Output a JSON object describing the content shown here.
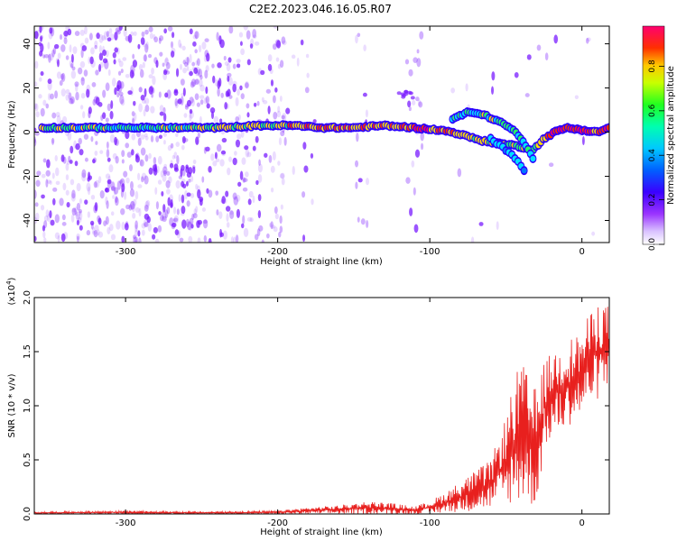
{
  "title": "C2E2.2023.046.16.05.R07",
  "colors": {
    "snr_line": "#e8201e",
    "ridge_palette": [
      "#3b00ff",
      "#0077ff",
      "#00e0ff",
      "#22ff66",
      "#ffe000",
      "#ff3000",
      "#ff0066"
    ],
    "scatter": "#7a1cff"
  },
  "chart_data": [
    {
      "type": "heatmap",
      "xlabel": "Height of straight line (km)",
      "ylabel": "Frequency (Hz)",
      "xlim": [
        -360,
        18
      ],
      "ylim": [
        -50,
        48
      ],
      "xticks": [
        -300,
        -200,
        -100,
        0
      ],
      "xtick_labels": [
        "-300",
        "-200",
        "-100",
        "0"
      ],
      "yticks": [
        -40,
        -20,
        0,
        20,
        40
      ],
      "ytick_labels": [
        "-40",
        "-20",
        "0",
        "20",
        "40"
      ],
      "grid": false,
      "colorbar": {
        "label": "Normalized spectral amplitude",
        "range": [
          0.0,
          0.98
        ],
        "ticks": [
          0.0,
          0.2,
          0.4,
          0.6,
          0.8
        ],
        "tick_labels": [
          "0.0",
          "0.2",
          "0.4",
          "0.6",
          "0.8"
        ]
      },
      "ridge": {
        "x": [
          -355,
          -330,
          -300,
          -270,
          -240,
          -210,
          -190,
          -170,
          -150,
          -130,
          -110,
          -95,
          -85,
          -75,
          -65,
          -55,
          -45,
          -38,
          -32,
          -25,
          -18,
          -10,
          0,
          10,
          18
        ],
        "y": [
          2,
          2,
          2,
          2,
          2,
          3,
          3,
          2,
          2,
          3,
          2,
          1,
          0,
          -2,
          -4,
          -5,
          -6,
          -7,
          -8,
          -3,
          0,
          2,
          1,
          0,
          2
        ],
        "amplitude": [
          0.55,
          0.5,
          0.45,
          0.5,
          0.55,
          0.6,
          0.7,
          0.75,
          0.75,
          0.7,
          0.8,
          0.85,
          0.7,
          0.7,
          0.65,
          0.6,
          0.55,
          0.5,
          0.45,
          0.7,
          0.85,
          0.9,
          0.95,
          0.85,
          0.8
        ]
      },
      "upper_branch": {
        "x": [
          -85,
          -75,
          -65,
          -55,
          -45,
          -38,
          -32
        ],
        "y": [
          6,
          9,
          8,
          5,
          1,
          -5,
          -12
        ],
        "amplitude": [
          0.4,
          0.45,
          0.5,
          0.5,
          0.45,
          0.4,
          0.3
        ]
      },
      "tail_branch": {
        "x": [
          -60,
          -50,
          -42,
          -38
        ],
        "y": [
          -3,
          -8,
          -13,
          -17
        ],
        "amplitude": [
          0.3,
          0.3,
          0.25,
          0.2
        ]
      },
      "side_blob": {
        "x": -115,
        "y": 17,
        "amplitude": 0.15
      }
    },
    {
      "type": "line",
      "xlabel": "Height of straight line (km)",
      "ylabel": "SNR (10 * v/v)",
      "scale_label": "(x10",
      "scale_exp": "4",
      "scale_close": ")",
      "xlim": [
        -360,
        18
      ],
      "ylim": [
        0.0,
        2.0
      ],
      "xticks": [
        -300,
        -200,
        -100,
        0
      ],
      "xtick_labels": [
        "-300",
        "-200",
        "-100",
        "0"
      ],
      "yticks": [
        0.0,
        0.5,
        1.0,
        1.5,
        2.0
      ],
      "ytick_labels": [
        "0.0",
        "0.5",
        "1.0",
        "1.5",
        "2.0"
      ],
      "grid": false,
      "envelope": {
        "x": [
          -360,
          -300,
          -250,
          -200,
          -180,
          -160,
          -140,
          -125,
          -110,
          -100,
          -90,
          -80,
          -70,
          -60,
          -50,
          -45,
          -40,
          -35,
          -30,
          -25,
          -20,
          -10,
          0,
          5,
          10,
          15,
          18
        ],
        "low": [
          0.0,
          0.0,
          0.0,
          0.0,
          0.0,
          0.0,
          0.0,
          0.0,
          0.0,
          0.0,
          0.01,
          0.02,
          0.03,
          0.05,
          0.08,
          0.1,
          0.1,
          0.08,
          0.05,
          0.55,
          0.7,
          0.8,
          0.9,
          1.0,
          1.05,
          1.1,
          1.1
        ],
        "high": [
          0.02,
          0.03,
          0.02,
          0.03,
          0.06,
          0.08,
          0.12,
          0.1,
          0.07,
          0.12,
          0.2,
          0.3,
          0.4,
          0.5,
          0.9,
          1.2,
          1.45,
          1.25,
          1.15,
          1.4,
          1.5,
          1.6,
          1.7,
          1.85,
          1.95,
          2.0,
          1.9
        ]
      }
    }
  ]
}
